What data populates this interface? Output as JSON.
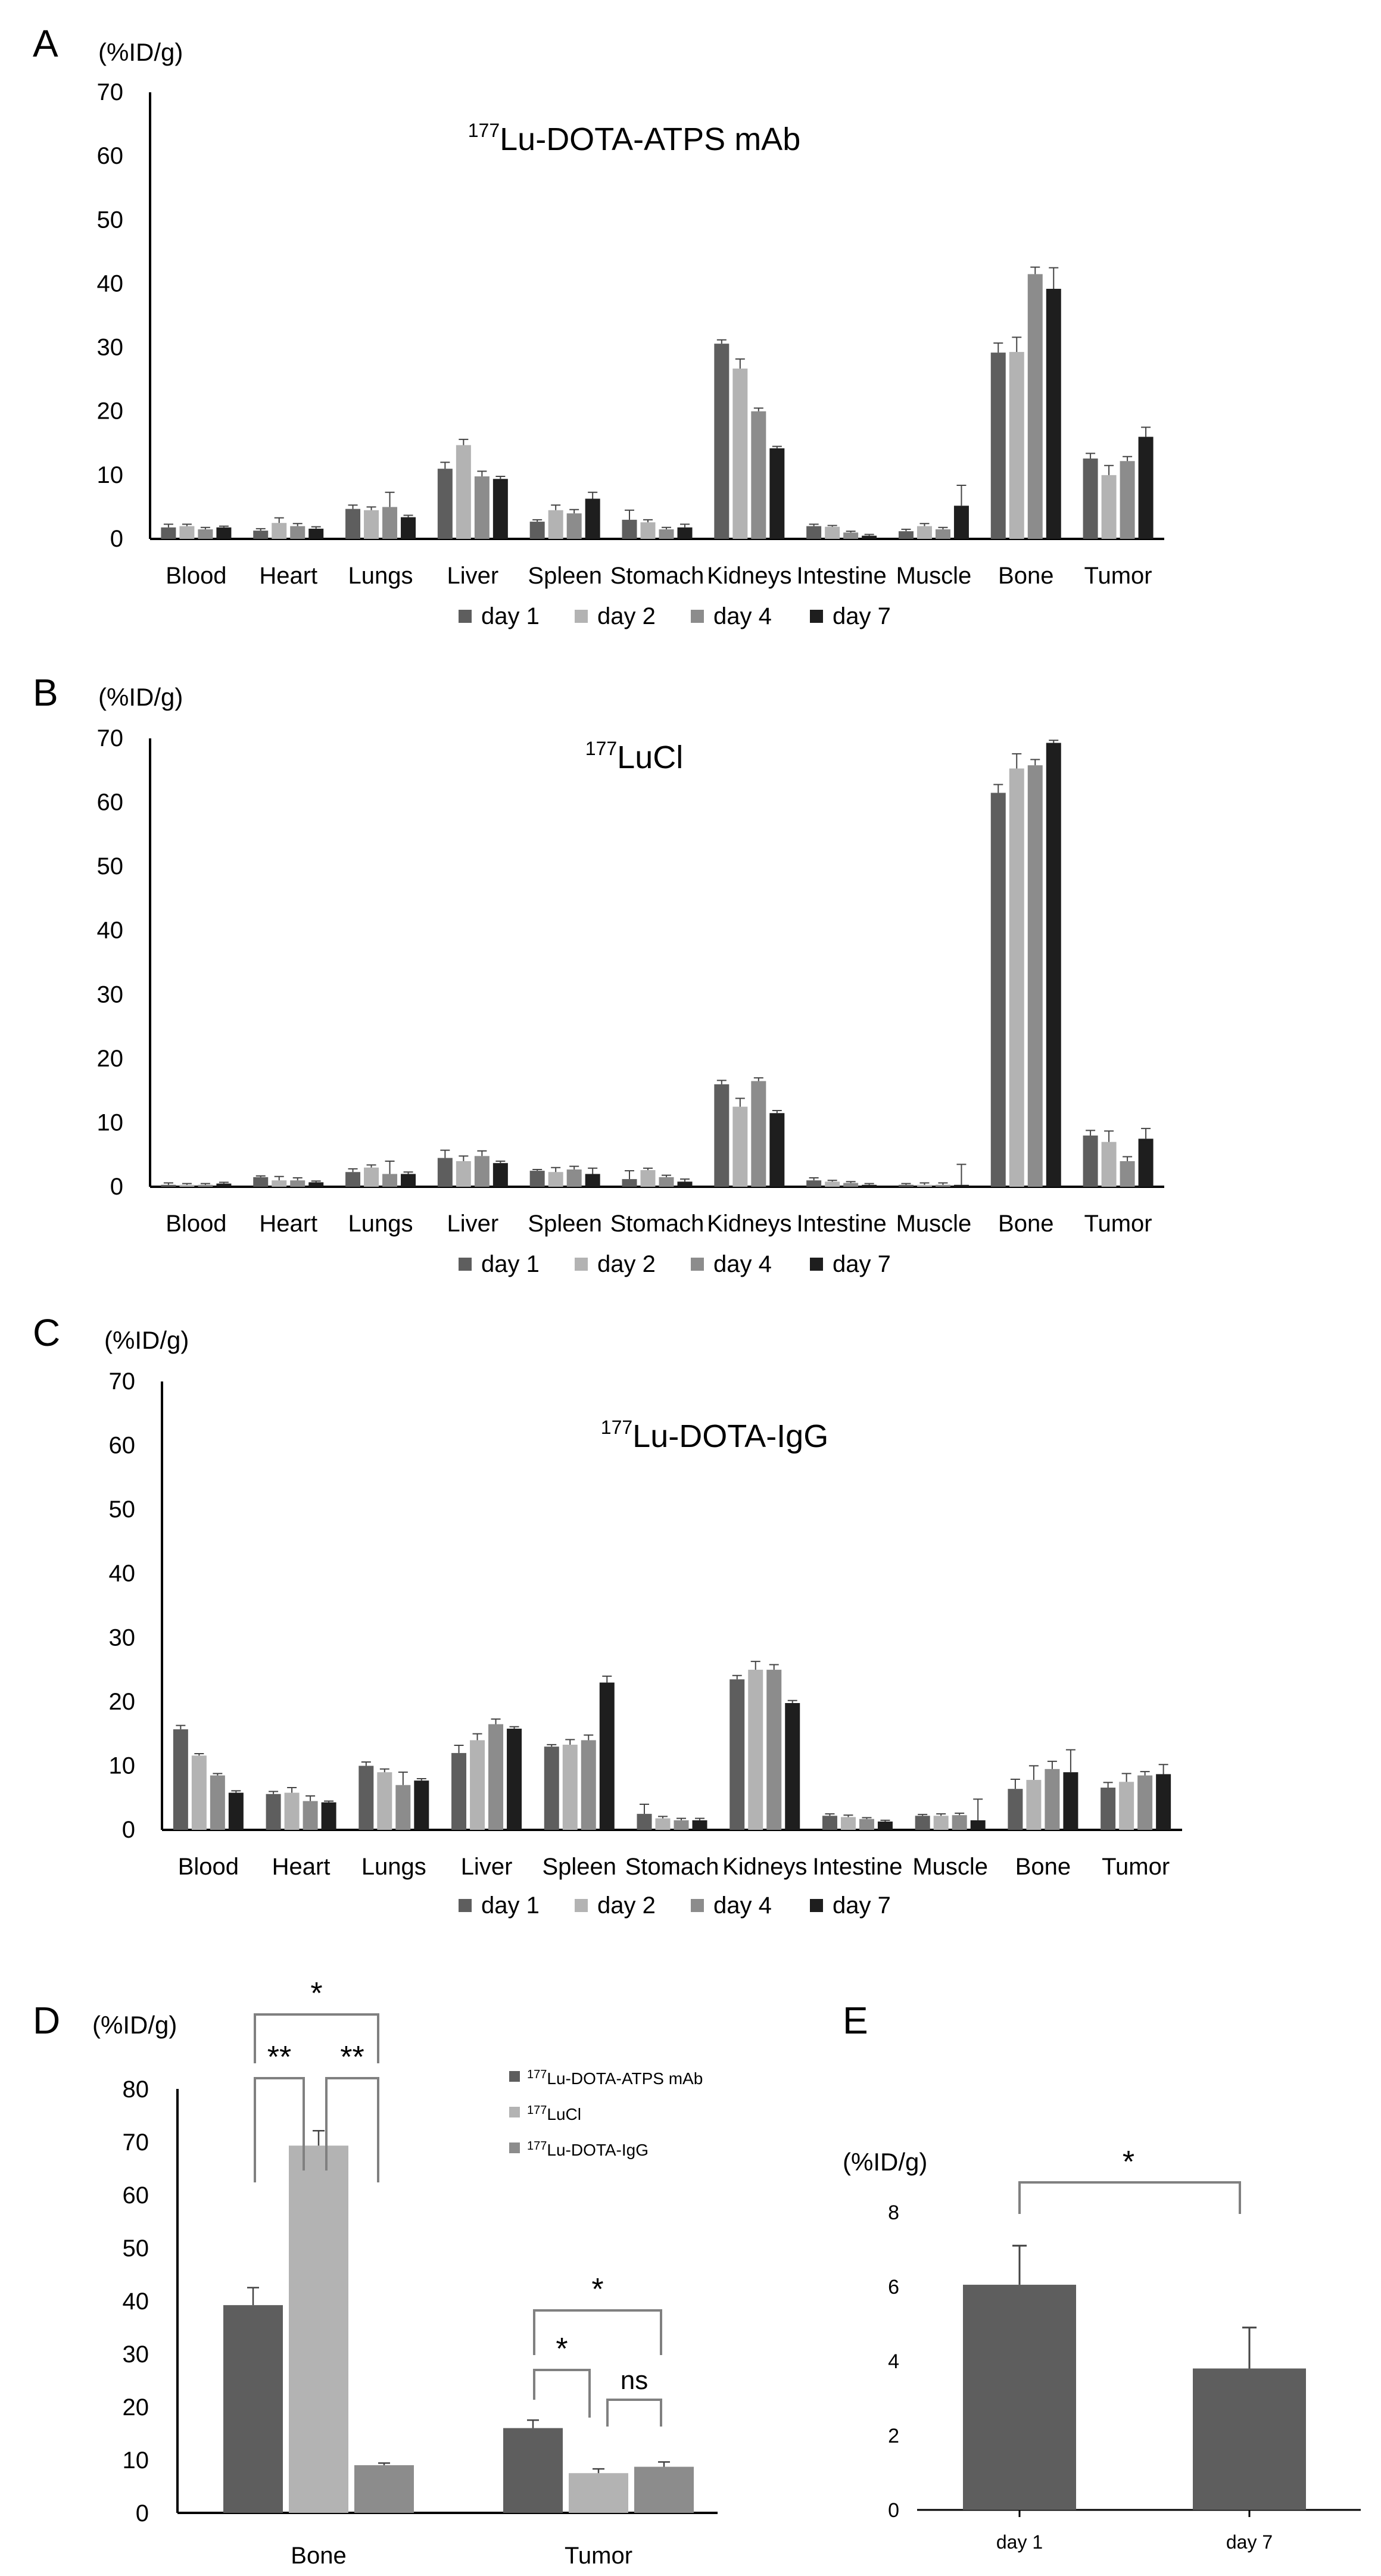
{
  "colors": {
    "day1": "#5e5e5e",
    "day2": "#b3b3b3",
    "day4": "#8c8c8c",
    "day7": "#1e1e1e",
    "atps": "#5e5e5e",
    "lucl": "#b3b3b3",
    "igg": "#8c8c8c",
    "axis": "#000000",
    "bracket": "#808080"
  },
  "legend_day": [
    "day 1",
    "day 2",
    "day 4",
    "day 7"
  ],
  "chart_data": [
    {
      "panel": "A",
      "type": "bar",
      "unit_label": "(%ID/g)",
      "title_sup": "177",
      "title_rest": "Lu-DOTA-ATPS mAb",
      "categories": [
        "Blood",
        "Heart",
        "Lungs",
        "Liver",
        "Spleen",
        "Stomach",
        "Kidneys",
        "Intestine",
        "Muscle",
        "Bone",
        "Tumor"
      ],
      "ylim": [
        0,
        70
      ],
      "yticks": [
        "0",
        "10",
        "20",
        "30",
        "40",
        "50",
        "60",
        "70"
      ],
      "series": [
        {
          "name": "day 1",
          "values": [
            1.8,
            1.3,
            4.7,
            11.0,
            2.7,
            3.0,
            30.6,
            2.0,
            1.2,
            29.2,
            12.6
          ],
          "errors": [
            0.5,
            0.3,
            0.6,
            1.0,
            0.3,
            1.5,
            0.6,
            0.3,
            0.3,
            1.5,
            0.8
          ]
        },
        {
          "name": "day 2",
          "values": [
            2.0,
            2.5,
            4.5,
            14.7,
            4.5,
            2.6,
            26.7,
            1.9,
            2.0,
            29.3,
            10.0
          ],
          "errors": [
            0.3,
            0.8,
            0.5,
            0.9,
            0.8,
            0.4,
            1.5,
            0.2,
            0.4,
            2.3,
            1.5
          ]
        },
        {
          "name": "day 4",
          "values": [
            1.5,
            2.0,
            5.0,
            9.8,
            4.0,
            1.5,
            20.0,
            1.0,
            1.5,
            41.5,
            12.2
          ],
          "errors": [
            0.3,
            0.4,
            2.3,
            0.8,
            0.6,
            0.3,
            0.5,
            0.2,
            0.3,
            1.1,
            0.7
          ]
        },
        {
          "name": "day 7",
          "values": [
            1.8,
            1.6,
            3.4,
            9.4,
            6.3,
            1.8,
            14.2,
            0.5,
            5.2,
            39.2,
            16.0
          ],
          "errors": [
            0.2,
            0.3,
            0.3,
            0.4,
            1.0,
            0.5,
            0.3,
            0.2,
            3.2,
            3.3,
            1.5
          ]
        }
      ]
    },
    {
      "panel": "B",
      "type": "bar",
      "unit_label": "(%ID/g)",
      "title_sup": "177",
      "title_rest": "LuCl",
      "categories": [
        "Blood",
        "Heart",
        "Lungs",
        "Liver",
        "Spleen",
        "Stomach",
        "Kidneys",
        "Intestine",
        "Muscle",
        "Bone",
        "Tumor"
      ],
      "ylim": [
        0,
        70
      ],
      "yticks": [
        "0",
        "10",
        "20",
        "30",
        "40",
        "50",
        "60",
        "70"
      ],
      "series": [
        {
          "name": "day 1",
          "values": [
            0.3,
            1.5,
            2.3,
            4.5,
            2.5,
            1.2,
            16.0,
            1.0,
            0.3,
            61.5,
            8.0
          ],
          "errors": [
            0.3,
            0.2,
            0.5,
            1.2,
            0.2,
            1.3,
            0.6,
            0.4,
            0.2,
            1.3,
            0.8
          ]
        },
        {
          "name": "day 2",
          "values": [
            0.3,
            1.0,
            3.0,
            4.0,
            2.3,
            2.6,
            12.5,
            0.8,
            0.3,
            65.3,
            7.0
          ],
          "errors": [
            0.2,
            0.6,
            0.4,
            0.8,
            0.7,
            0.3,
            1.3,
            0.2,
            0.3,
            2.3,
            1.7
          ]
        },
        {
          "name": "day 4",
          "values": [
            0.3,
            1.0,
            2.0,
            4.8,
            2.7,
            1.5,
            16.5,
            0.6,
            0.3,
            65.8,
            4.0
          ],
          "errors": [
            0.2,
            0.4,
            2.0,
            0.8,
            0.5,
            0.3,
            0.5,
            0.2,
            0.3,
            0.9,
            0.7
          ]
        },
        {
          "name": "day 7",
          "values": [
            0.5,
            0.7,
            2.0,
            3.7,
            2.0,
            0.8,
            11.5,
            0.3,
            0.3,
            69.3,
            7.5
          ],
          "errors": [
            0.2,
            0.2,
            0.3,
            0.3,
            0.9,
            0.4,
            0.4,
            0.2,
            3.2,
            0.4,
            1.6
          ]
        }
      ]
    },
    {
      "panel": "C",
      "type": "bar",
      "unit_label": "(%ID/g)",
      "title_sup": "177",
      "title_rest": "Lu-DOTA-IgG",
      "categories": [
        "Blood",
        "Heart",
        "Lungs",
        "Liver",
        "Spleen",
        "Stomach",
        "Kidneys",
        "Intestine",
        "Muscle",
        "Bone",
        "Tumor"
      ],
      "ylim": [
        0,
        70
      ],
      "yticks": [
        "0",
        "10",
        "20",
        "30",
        "40",
        "50",
        "60",
        "70"
      ],
      "series": [
        {
          "name": "day 1",
          "values": [
            15.7,
            5.6,
            10.0,
            12.0,
            13.0,
            2.5,
            23.5,
            2.2,
            2.2,
            6.4,
            6.6
          ],
          "errors": [
            0.6,
            0.4,
            0.6,
            1.2,
            0.3,
            1.5,
            0.6,
            0.3,
            0.2,
            1.5,
            0.8
          ]
        },
        {
          "name": "day 2",
          "values": [
            11.6,
            5.8,
            9.0,
            14.0,
            13.3,
            1.8,
            25.0,
            2.0,
            2.2,
            7.8,
            7.5
          ],
          "errors": [
            0.3,
            0.8,
            0.5,
            1.0,
            0.8,
            0.3,
            1.3,
            0.3,
            0.3,
            2.2,
            1.3
          ]
        },
        {
          "name": "day 4",
          "values": [
            8.5,
            4.5,
            7.0,
            16.5,
            14.0,
            1.5,
            25.0,
            1.7,
            2.3,
            9.5,
            8.5
          ],
          "errors": [
            0.3,
            0.8,
            2.0,
            0.8,
            0.8,
            0.3,
            0.8,
            0.2,
            0.3,
            1.2,
            0.6
          ]
        },
        {
          "name": "day 7",
          "values": [
            5.8,
            4.3,
            7.7,
            15.8,
            23.0,
            1.5,
            19.8,
            1.3,
            1.5,
            9.0,
            8.7
          ],
          "errors": [
            0.3,
            0.2,
            0.3,
            0.3,
            1.0,
            0.3,
            0.4,
            0.2,
            3.3,
            3.5,
            1.5
          ]
        }
      ]
    },
    {
      "panel": "D",
      "type": "bar",
      "unit_label": "(%ID/g)",
      "categories": [
        "Bone",
        "Tumor"
      ],
      "ylim": [
        0,
        80
      ],
      "yticks": [
        "0",
        "10",
        "20",
        "30",
        "40",
        "50",
        "60",
        "70",
        "80"
      ],
      "legend": [
        {
          "sup": "177",
          "rest": "Lu-DOTA-ATPS mAb"
        },
        {
          "sup": "177",
          "rest": "LuCl"
        },
        {
          "sup": "177",
          "rest": "Lu-DOTA-IgG"
        }
      ],
      "series": [
        {
          "name": "177Lu-DOTA-ATPS mAb",
          "values": [
            39.2,
            16.0
          ],
          "errors": [
            3.3,
            1.5
          ]
        },
        {
          "name": "177LuCl",
          "values": [
            69.3,
            7.5
          ],
          "errors": [
            2.8,
            0.8
          ]
        },
        {
          "name": "177Lu-DOTA-IgG",
          "values": [
            9.0,
            8.7
          ],
          "errors": [
            0.4,
            0.9
          ]
        }
      ],
      "significance": [
        "**",
        "**",
        "*",
        "*",
        "ns",
        "*"
      ]
    },
    {
      "panel": "E",
      "type": "bar",
      "unit_label": "(%ID/g)",
      "categories": [
        "day 1",
        "day 7"
      ],
      "ylim": [
        0,
        8
      ],
      "yticks": [
        "0",
        "2",
        "4",
        "6",
        "8"
      ],
      "values": [
        6.05,
        3.8
      ],
      "errors": [
        1.05,
        1.1
      ],
      "significance": [
        "*"
      ]
    }
  ]
}
